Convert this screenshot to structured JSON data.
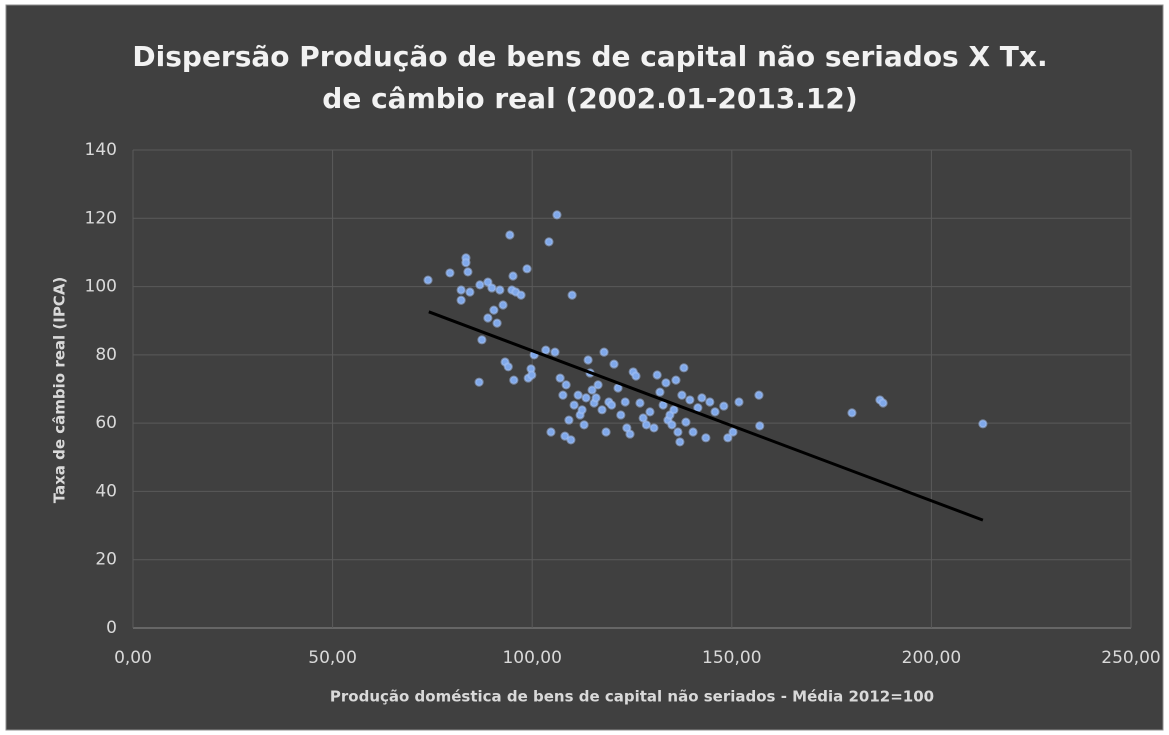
{
  "chart_data": {
    "type": "scatter",
    "title": [
      "Dispersão Produção de bens de capital não seriados X Tx.",
      "de câmbio real (2002.01-2013.12)"
    ],
    "x_label": "Produção doméstica de bens de capital não seriados - Média 2012=100",
    "y_label": "Taxa de câmbio real (IPCA)",
    "color": "#7fa8ea",
    "x": [
      73.9,
      79.4,
      82.2,
      82.2,
      83.4,
      83.4,
      83.9,
      84.4,
      86.7,
      86.9,
      87.4,
      88.9,
      88.9,
      89.9,
      90.4,
      91.2,
      91.9,
      92.7,
      93.2,
      94,
      94.4,
      94.9,
      95.2,
      95.4,
      95.9,
      97.2,
      98.7,
      99,
      99.7,
      99.9,
      100.5,
      103.4,
      104.2,
      104.7,
      105.7,
      106.2,
      107,
      107.7,
      108.5,
      109.2,
      110,
      108.2,
      109.7,
      110.5,
      111.5,
      112,
      112.5,
      113,
      113.5,
      114,
      114.5,
      115,
      115.5,
      116,
      116.5,
      117.5,
      118,
      118.5,
      119.2,
      119.9,
      120.5,
      121.5,
      122.2,
      123.3,
      123.7,
      124.5,
      125.3,
      126,
      127,
      127.8,
      128.6,
      129.5,
      130.5,
      131.3,
      132,
      132.8,
      133.5,
      134,
      134.5,
      135,
      135.5,
      136,
      136.5,
      137,
      137.5,
      138,
      138.5,
      139.5,
      140.3,
      141.5,
      142.5,
      143.5,
      144.5,
      145.8,
      148,
      149,
      150.3,
      151.8,
      156.8,
      157,
      180.1,
      187.1,
      187.9,
      212.9
    ],
    "y": [
      101.9,
      104,
      99,
      96,
      108.4,
      107,
      104.3,
      98.4,
      72,
      100.5,
      84.4,
      101.3,
      90.8,
      99.6,
      93.1,
      89.3,
      99,
      94.6,
      77.9,
      76.5,
      115.1,
      99,
      103.1,
      72.6,
      98.4,
      97.5,
      105.2,
      73.2,
      75.9,
      74.1,
      80,
      81.4,
      113.1,
      57.4,
      80.8,
      121,
      73.2,
      68.2,
      71.2,
      60.9,
      97.5,
      56.2,
      55.1,
      65.3,
      68.2,
      62.4,
      63.9,
      59.5,
      67.4,
      78.5,
      74.7,
      69.7,
      65.9,
      67.4,
      71.2,
      63.9,
      80.8,
      57.4,
      66.2,
      65.3,
      77.3,
      70.3,
      62.4,
      66.2,
      58.6,
      56.8,
      75,
      73.8,
      65.9,
      61.5,
      59.5,
      63.3,
      58.6,
      74.1,
      69.1,
      65.3,
      71.8,
      60.9,
      62.4,
      59.5,
      63.9,
      72.6,
      57.4,
      54.5,
      68.2,
      76.2,
      60.3,
      66.8,
      57.4,
      64.5,
      67.4,
      55.7,
      66.2,
      63.3,
      65,
      55.7,
      57.4,
      66.2,
      68.2,
      59.2,
      63,
      66.8,
      65.9,
      59.8
    ],
    "trendline": {
      "x": [
        74.1,
        212.9
      ],
      "y": [
        92.6,
        31.6
      ],
      "color": "#000000"
    },
    "xlim": [
      0,
      250
    ],
    "xticks": [
      {
        "value": 0,
        "label": "0,00"
      },
      {
        "value": 50,
        "label": "50,00"
      },
      {
        "value": 100,
        "label": "100,00"
      },
      {
        "value": 150,
        "label": "150,00"
      },
      {
        "value": 200,
        "label": "200,00"
      },
      {
        "value": 250,
        "label": "250,00"
      }
    ],
    "ylim": [
      0,
      140
    ],
    "yticks": [
      0,
      20,
      40,
      60,
      80,
      100,
      120,
      140
    ],
    "grid": true
  }
}
